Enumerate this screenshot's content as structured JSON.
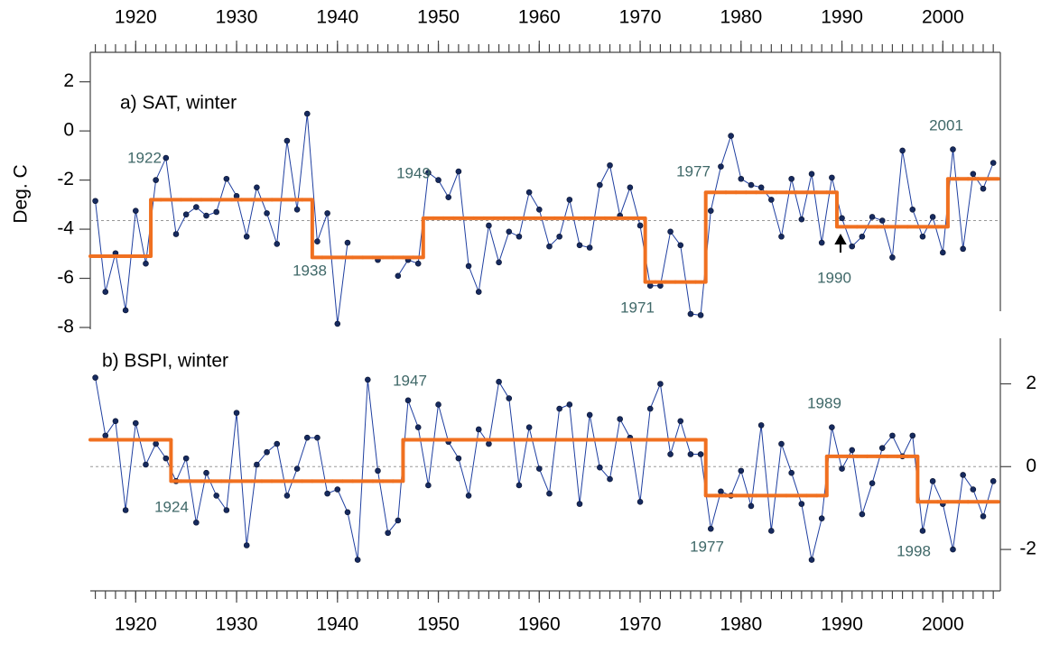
{
  "chart_data": [
    {
      "type": "line",
      "title": "a) SAT, winter",
      "ylabel": "Deg. C",
      "x": [
        1916,
        1917,
        1918,
        1919,
        1920,
        1921,
        1922,
        1923,
        1924,
        1925,
        1926,
        1927,
        1928,
        1929,
        1930,
        1931,
        1932,
        1933,
        1934,
        1935,
        1936,
        1937,
        1938,
        1939,
        1940,
        1941,
        1942,
        1943,
        1944,
        1945,
        1946,
        1947,
        1948,
        1949,
        1950,
        1951,
        1952,
        1953,
        1954,
        1955,
        1956,
        1957,
        1958,
        1959,
        1960,
        1961,
        1962,
        1963,
        1964,
        1965,
        1966,
        1967,
        1968,
        1969,
        1970,
        1971,
        1972,
        1973,
        1974,
        1975,
        1976,
        1977,
        1978,
        1979,
        1980,
        1981,
        1982,
        1983,
        1984,
        1985,
        1986,
        1987,
        1988,
        1989,
        1990,
        1991,
        1992,
        1993,
        1994,
        1995,
        1996,
        1997,
        1998,
        1999,
        2000,
        2001,
        2002,
        2003,
        2004,
        2005
      ],
      "series": [
        {
          "color": "#1f3fa0",
          "markers": true,
          "values": [
            -2.85,
            -6.55,
            -4.98,
            -7.3,
            -3.25,
            -5.4,
            -2.0,
            -1.1,
            -4.2,
            -3.4,
            -3.1,
            -3.45,
            -3.3,
            -1.95,
            -2.65,
            -4.3,
            -2.3,
            -3.35,
            -4.6,
            -0.4,
            -3.2,
            0.7,
            -4.5,
            -3.35,
            -7.85,
            -4.55,
            null,
            null,
            -5.25,
            null,
            -5.9,
            -5.25,
            -5.4,
            -1.7,
            -2.0,
            -2.7,
            -1.65,
            -5.5,
            -6.55,
            -3.85,
            -5.35,
            -4.1,
            -4.3,
            -2.5,
            -3.2,
            -4.7,
            -4.3,
            -2.8,
            -4.65,
            -4.75,
            -2.2,
            -1.4,
            -3.45,
            -2.3,
            -3.85,
            -6.3,
            -6.3,
            -4.1,
            -4.65,
            -7.45,
            -7.5,
            -3.25,
            -1.45,
            -0.2,
            -1.95,
            -2.2,
            -2.3,
            -2.8,
            -4.3,
            -1.95,
            -3.6,
            -1.75,
            -4.55,
            -1.9,
            -3.55,
            -4.7,
            -4.3,
            -3.5,
            -3.65,
            -5.15,
            -0.8,
            -3.2,
            -4.3,
            -3.5,
            -4.95,
            -0.75,
            -4.8,
            -1.75,
            -2.35,
            -1.3
          ]
        },
        {
          "color": "#f07020",
          "step": true,
          "values": [
            -5.1,
            -5.1,
            -5.1,
            -5.1,
            -5.1,
            -5.1,
            -2.8,
            -2.8,
            -2.8,
            -2.8,
            -2.8,
            -2.8,
            -2.8,
            -2.8,
            -2.8,
            -2.8,
            -2.8,
            -2.8,
            -2.8,
            -2.8,
            -2.8,
            -2.8,
            -5.15,
            -5.15,
            -5.15,
            -5.15,
            -5.15,
            -5.15,
            -5.15,
            -5.15,
            -5.15,
            -5.15,
            -5.15,
            -3.55,
            -3.55,
            -3.55,
            -3.55,
            -3.55,
            -3.55,
            -3.55,
            -3.55,
            -3.55,
            -3.55,
            -3.55,
            -3.55,
            -3.55,
            -3.55,
            -3.55,
            -3.55,
            -3.55,
            -3.55,
            -3.55,
            -3.55,
            -3.55,
            -3.55,
            -6.15,
            -6.15,
            -6.15,
            -6.15,
            -6.15,
            -6.15,
            -2.5,
            -2.5,
            -2.5,
            -2.5,
            -2.5,
            -2.5,
            -2.5,
            -2.5,
            -2.5,
            -2.5,
            -2.5,
            -2.5,
            -2.5,
            -3.9,
            -3.9,
            -3.9,
            -3.9,
            -3.9,
            -3.9,
            -3.9,
            -3.9,
            -3.9,
            -3.9,
            -3.9,
            -1.95,
            -1.95,
            -1.95,
            -1.95,
            -1.95
          ]
        }
      ],
      "hline": -3.65,
      "xlim": [
        1915.5,
        2005.7
      ],
      "xticks": [
        1920,
        1930,
        1940,
        1950,
        1960,
        1970,
        1980,
        1990,
        2000
      ],
      "ylim": [
        -8,
        3.2
      ],
      "yticks": [
        2,
        0,
        -2,
        -4,
        -6,
        -8
      ],
      "annotations": [
        "1922",
        "1938",
        "1949",
        "1971",
        "1977",
        "1990",
        "2001"
      ]
    },
    {
      "type": "line",
      "title": "b) BSPI, winter",
      "x": [
        1916,
        1917,
        1918,
        1919,
        1920,
        1921,
        1922,
        1923,
        1924,
        1925,
        1926,
        1927,
        1928,
        1929,
        1930,
        1931,
        1932,
        1933,
        1934,
        1935,
        1936,
        1937,
        1938,
        1939,
        1940,
        1941,
        1942,
        1943,
        1944,
        1945,
        1946,
        1947,
        1948,
        1949,
        1950,
        1951,
        1952,
        1953,
        1954,
        1955,
        1956,
        1957,
        1958,
        1959,
        1960,
        1961,
        1962,
        1963,
        1964,
        1965,
        1966,
        1967,
        1968,
        1969,
        1970,
        1971,
        1972,
        1973,
        1974,
        1975,
        1976,
        1977,
        1978,
        1979,
        1980,
        1981,
        1982,
        1983,
        1984,
        1985,
        1986,
        1987,
        1988,
        1989,
        1990,
        1991,
        1992,
        1993,
        1994,
        1995,
        1996,
        1997,
        1998,
        1999,
        2000,
        2001,
        2002,
        2003,
        2004,
        2005
      ],
      "series": [
        {
          "color": "#1f3fa0",
          "markers": true,
          "values": [
            2.15,
            0.75,
            1.1,
            -1.05,
            1.05,
            0.05,
            0.55,
            0.2,
            -0.35,
            0.2,
            -1.35,
            -0.15,
            -0.7,
            -1.05,
            1.3,
            -1.9,
            0.05,
            0.35,
            0.55,
            -0.7,
            -0.05,
            0.7,
            0.7,
            -0.65,
            -0.55,
            -1.1,
            -2.25,
            2.1,
            -0.1,
            -1.6,
            -1.3,
            1.6,
            0.95,
            -0.45,
            1.5,
            0.6,
            0.2,
            -0.7,
            0.9,
            0.55,
            2.05,
            1.65,
            -0.45,
            0.95,
            -0.05,
            -0.65,
            1.4,
            1.5,
            -0.9,
            1.25,
            -0.02,
            -0.3,
            1.15,
            0.7,
            -0.85,
            1.4,
            2.0,
            0.3,
            1.1,
            0.3,
            0.3,
            -1.5,
            -0.6,
            -0.7,
            -0.1,
            -0.95,
            1.0,
            -1.55,
            0.55,
            -0.15,
            -0.9,
            -2.25,
            -1.25,
            0.95,
            -0.05,
            0.4,
            -1.15,
            -0.4,
            0.45,
            0.75,
            0.25,
            0.75,
            -1.55,
            -0.35,
            -0.9,
            -2.0,
            -0.2,
            -0.55,
            -1.2,
            -0.35
          ]
        },
        {
          "color": "#f07020",
          "step": true,
          "values": [
            0.65,
            0.65,
            0.65,
            0.65,
            0.65,
            0.65,
            0.65,
            0.65,
            -0.35,
            -0.35,
            -0.35,
            -0.35,
            -0.35,
            -0.35,
            -0.35,
            -0.35,
            -0.35,
            -0.35,
            -0.35,
            -0.35,
            -0.35,
            -0.35,
            -0.35,
            -0.35,
            -0.35,
            -0.35,
            -0.35,
            -0.35,
            -0.35,
            -0.35,
            -0.35,
            0.65,
            0.65,
            0.65,
            0.65,
            0.65,
            0.65,
            0.65,
            0.65,
            0.65,
            0.65,
            0.65,
            0.65,
            0.65,
            0.65,
            0.65,
            0.65,
            0.65,
            0.65,
            0.65,
            0.65,
            0.65,
            0.65,
            0.65,
            0.65,
            0.65,
            0.65,
            0.65,
            0.65,
            0.65,
            0.65,
            -0.7,
            -0.7,
            -0.7,
            -0.7,
            -0.7,
            -0.7,
            -0.7,
            -0.7,
            -0.7,
            -0.7,
            -0.7,
            -0.7,
            0.25,
            0.25,
            0.25,
            0.25,
            0.25,
            0.25,
            0.25,
            0.25,
            0.25,
            -0.85,
            -0.85,
            -0.85,
            -0.85,
            -0.85,
            -0.85,
            -0.85,
            -0.85
          ]
        }
      ],
      "hline": 0,
      "xlim": [
        1915.5,
        2005.7
      ],
      "xticks": [
        1920,
        1930,
        1940,
        1950,
        1960,
        1970,
        1980,
        1990,
        2000
      ],
      "ylim": [
        -3,
        3.1
      ],
      "yticks": [
        2,
        0,
        -2
      ],
      "annotations": [
        "1947",
        "1924",
        "1977",
        "1989",
        "1998"
      ]
    }
  ]
}
